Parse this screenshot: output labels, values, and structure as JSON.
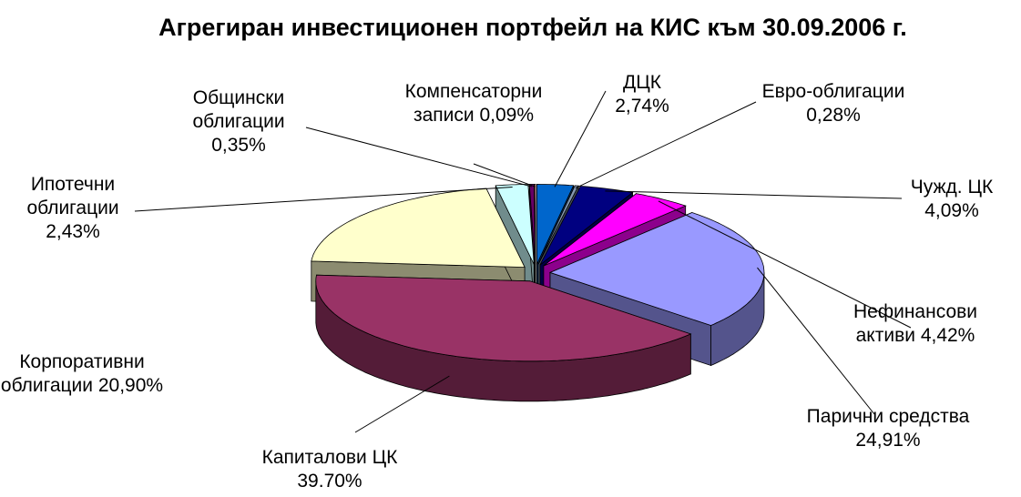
{
  "chart_data": {
    "type": "pie3d",
    "title": "Агрегиран инвестиционен портфейл на КИС към 30.09.2006 г.",
    "categories": [
      "ДЦК",
      "Евро-облигации",
      "Чужд. ЦК",
      "Нефинансови активи",
      "Парични средства",
      "Капиталови ЦК",
      "Корпоративни облигации",
      "Ипотечни облигации",
      "Общински облигации",
      "Компенсаторни записи"
    ],
    "values": [
      2.74,
      0.28,
      4.09,
      4.42,
      24.91,
      39.7,
      20.9,
      2.43,
      0.35,
      0.09
    ],
    "value_labels": [
      "2,74%",
      "0,28%",
      "4,09%",
      "4,42%",
      "24,91%",
      "39.70%",
      "20,90%",
      "2,43%",
      "0,35%",
      "0,09%"
    ],
    "colors": [
      "#0066cc",
      "#8497b0",
      "#000080",
      "#ff00ff",
      "#9999ff",
      "#993366",
      "#ffffcc",
      "#ccffff",
      "#660066",
      "#ff8080"
    ]
  }
}
